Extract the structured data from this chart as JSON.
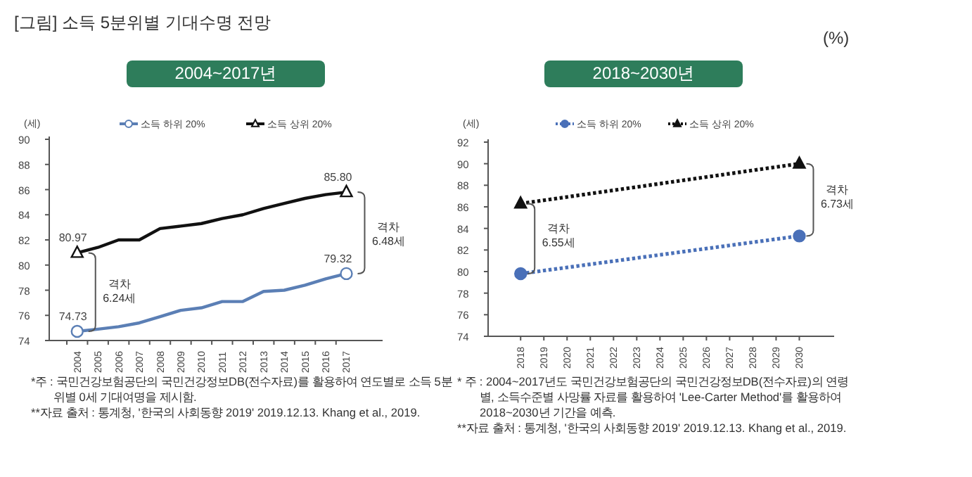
{
  "chart_data": [
    {
      "type": "line",
      "title": "[그림] 소득 5분위별 기대수명 전망",
      "subtitle": "2004~2017년",
      "ylabel": "(세)",
      "categories": [
        "2004",
        "2005",
        "2006",
        "2007",
        "2008",
        "2009",
        "2010",
        "2011",
        "2012",
        "2013",
        "2014",
        "2015",
        "2016",
        "2017"
      ],
      "series": [
        {
          "name": "소득 하위 20%",
          "color": "#5b7fb5",
          "values": [
            74.73,
            74.9,
            75.1,
            75.4,
            75.9,
            76.4,
            76.6,
            77.1,
            77.1,
            77.9,
            78.0,
            78.4,
            78.9,
            79.32
          ],
          "value_labels": [
            "74.73",
            null,
            null,
            null,
            null,
            null,
            null,
            null,
            null,
            null,
            null,
            null,
            null,
            "79.32"
          ]
        },
        {
          "name": "소득 상위 20%",
          "color": "#111111",
          "values": [
            80.97,
            81.4,
            82.0,
            82.0,
            82.9,
            83.1,
            83.3,
            83.7,
            84.0,
            84.5,
            84.9,
            85.3,
            85.6,
            85.8
          ],
          "value_labels": [
            "80.97",
            null,
            null,
            null,
            null,
            null,
            null,
            null,
            null,
            null,
            null,
            null,
            null,
            "85.80"
          ]
        }
      ],
      "ylim": [
        74,
        90
      ],
      "yticks": [
        74,
        76,
        78,
        80,
        82,
        84,
        86,
        88,
        90
      ],
      "legend": "top",
      "grid": false,
      "line_style": "solid",
      "annotations": [
        "격차 6.24세",
        "격차 6.48세",
        "*주 : 국민건강보험공단의 국민건강정보DB(전수자료)를 활용하여 연도별로 소득 5분위별 0세 기대여명을 제시함.",
        "**자료 출처 : 통계청, '한국의 사회동향 2019' 2019.12.13. Khang et al., 2019."
      ]
    },
    {
      "type": "line",
      "title": "(%)",
      "subtitle": "2018~2030년",
      "ylabel": "(세)",
      "series": [
        {
          "name": "소득 하위 20%",
          "color": "#4a70b8",
          "marker": "circle",
          "values": [
            79.8,
            83.3
          ]
        },
        {
          "name": "소득 상위 20%",
          "color": "#111111",
          "marker": "triangle",
          "values": [
            86.3,
            90.0
          ]
        }
      ],
      "x": [
        2018,
        2030
      ],
      "xlim": [
        2016.6,
        2031.5
      ],
      "xticks": [
        2018,
        2019,
        2020,
        2021,
        2022,
        2023,
        2024,
        2025,
        2026,
        2027,
        2028,
        2029,
        2030
      ],
      "ylim": [
        74,
        92
      ],
      "yticks": [
        74,
        76,
        78,
        80,
        82,
        84,
        86,
        88,
        90,
        92
      ],
      "legend": "top",
      "grid": false,
      "line_style": "dotted",
      "annotations": [
        "격차 6.55세",
        "격차 6.73세",
        "* 주 : 2004~2017년도 국민건강보험공단의 국민건강정보DB(전수자료)의 연령별, 소득수준별 사망률 자료를 활용하여 'Lee-Carter Method'를 활용하여 2018~2030년 기간을 예측.",
        "**자료 출처 : 통계청, '한국의 사회동향 2019' 2019.12.13. Khang et al., 2019."
      ]
    }
  ]
}
